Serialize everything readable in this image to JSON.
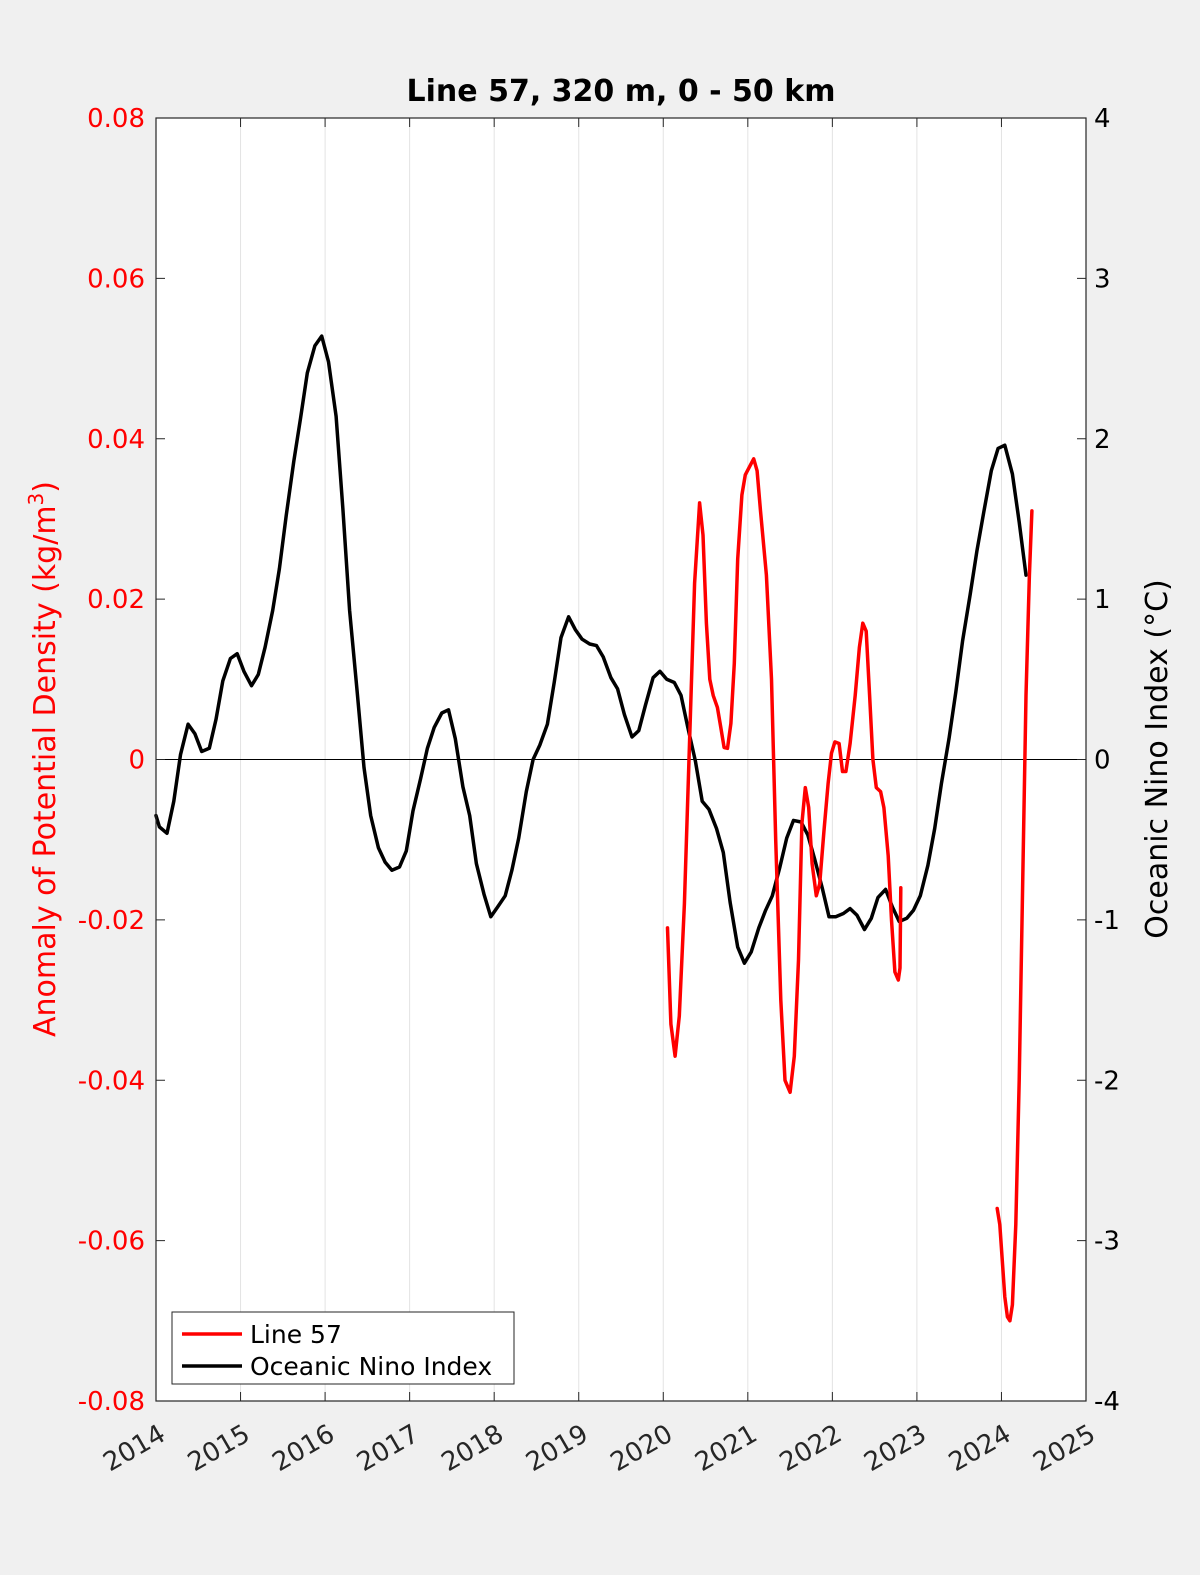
{
  "chart_data": {
    "type": "line",
    "title": "Line 57, 320 m, 0 - 50 km",
    "ylabel_left": "Anomaly of Potential Density (kg/m",
    "ylabel_left_superscript": "3",
    "ylabel_left_close": ")",
    "ylabel_right": "Oceanic Nino Index (°C)",
    "xlim": [
      2014,
      2025
    ],
    "ylim_left": [
      -0.08,
      0.08
    ],
    "ylim_right": [
      -4,
      4
    ],
    "x_ticks": [
      "2014",
      "2015",
      "2016",
      "2017",
      "2018",
      "2019",
      "2020",
      "2021",
      "2022",
      "2023",
      "2024",
      "2025"
    ],
    "y_left_ticks": [
      "0.08",
      "0.06",
      "0.04",
      "0.02",
      "0",
      "-0.02",
      "-0.04",
      "-0.06",
      "-0.08"
    ],
    "y_right_ticks": [
      "4",
      "3",
      "2",
      "1",
      "0",
      "-1",
      "-2",
      "-3",
      "-4"
    ],
    "grid": "vertical",
    "zero_line": true,
    "legend_position": "bottom-left",
    "colors": {
      "line57": "#ff0000",
      "oni": "#000000",
      "left_axis": "#ff0000",
      "right_axis": "#000000"
    },
    "series": [
      {
        "name": "Line 57",
        "axis": "left",
        "color": "#ff0000",
        "segments": [
          [
            [
              2020.05,
              -0.021
            ],
            [
              2020.09,
              -0.033
            ],
            [
              2020.14,
              -0.037
            ],
            [
              2020.19,
              -0.032
            ],
            [
              2020.25,
              -0.018
            ],
            [
              2020.31,
              0.002
            ],
            [
              2020.37,
              0.022
            ],
            [
              2020.43,
              0.032
            ],
            [
              2020.47,
              0.028
            ],
            [
              2020.51,
              0.017
            ],
            [
              2020.55,
              0.01
            ],
            [
              2020.59,
              0.008
            ],
            [
              2020.64,
              0.0065
            ],
            [
              2020.68,
              0.004
            ],
            [
              2020.72,
              0.0015
            ],
            [
              2020.76,
              0.0014
            ],
            [
              2020.8,
              0.0045
            ],
            [
              2020.84,
              0.012
            ],
            [
              2020.88,
              0.025
            ],
            [
              2020.93,
              0.033
            ],
            [
              2020.97,
              0.0355
            ],
            [
              2021.02,
              0.0365
            ],
            [
              2021.07,
              0.0375
            ],
            [
              2021.11,
              0.036
            ],
            [
              2021.15,
              0.031
            ],
            [
              2021.22,
              0.023
            ],
            [
              2021.28,
              0.01
            ],
            [
              2021.33,
              -0.01
            ],
            [
              2021.39,
              -0.03
            ],
            [
              2021.44,
              -0.04
            ],
            [
              2021.5,
              -0.0415
            ],
            [
              2021.55,
              -0.037
            ],
            [
              2021.6,
              -0.025
            ],
            [
              2021.64,
              -0.008
            ],
            [
              2021.68,
              -0.0035
            ],
            [
              2021.72,
              -0.006
            ],
            [
              2021.76,
              -0.013
            ],
            [
              2021.81,
              -0.017
            ],
            [
              2021.85,
              -0.0155
            ],
            [
              2021.9,
              -0.009
            ],
            [
              2021.95,
              -0.003
            ],
            [
              2021.99,
              0.0008
            ],
            [
              2022.03,
              0.0022
            ],
            [
              2022.08,
              0.002
            ],
            [
              2022.12,
              -0.0015
            ],
            [
              2022.16,
              -0.0015
            ],
            [
              2022.21,
              0.002
            ],
            [
              2022.27,
              0.008
            ],
            [
              2022.32,
              0.014
            ],
            [
              2022.36,
              0.017
            ],
            [
              2022.4,
              0.016
            ],
            [
              2022.44,
              0.008
            ],
            [
              2022.48,
              0.0
            ],
            [
              2022.52,
              -0.0035
            ],
            [
              2022.57,
              -0.004
            ],
            [
              2022.61,
              -0.006
            ],
            [
              2022.66,
              -0.012
            ],
            [
              2022.7,
              -0.02
            ],
            [
              2022.74,
              -0.0265
            ],
            [
              2022.78,
              -0.0275
            ],
            [
              2022.8,
              -0.026
            ],
            [
              2022.81,
              -0.016
            ]
          ],
          [
            [
              2023.95,
              -0.056
            ],
            [
              2023.98,
              -0.058
            ],
            [
              2024.01,
              -0.0625
            ],
            [
              2024.04,
              -0.067
            ],
            [
              2024.07,
              -0.0695
            ],
            [
              2024.1,
              -0.07
            ],
            [
              2024.13,
              -0.068
            ],
            [
              2024.17,
              -0.058
            ],
            [
              2024.21,
              -0.04
            ],
            [
              2024.25,
              -0.016
            ],
            [
              2024.29,
              0.008
            ],
            [
              2024.33,
              0.023
            ],
            [
              2024.36,
              0.031
            ]
          ]
        ]
      },
      {
        "name": "Oceanic Nino Index",
        "axis": "right",
        "color": "#000000",
        "x": [
          2014.0,
          2014.04,
          2014.13,
          2014.21,
          2014.29,
          2014.38,
          2014.46,
          2014.54,
          2014.63,
          2014.71,
          2014.79,
          2014.88,
          2014.96,
          2015.04,
          2015.13,
          2015.21,
          2015.29,
          2015.38,
          2015.46,
          2015.54,
          2015.63,
          2015.71,
          2015.79,
          2015.88,
          2015.96,
          2016.04,
          2016.13,
          2016.21,
          2016.29,
          2016.38,
          2016.46,
          2016.54,
          2016.63,
          2016.71,
          2016.79,
          2016.88,
          2016.96,
          2017.04,
          2017.13,
          2017.21,
          2017.29,
          2017.38,
          2017.46,
          2017.54,
          2017.63,
          2017.71,
          2017.79,
          2017.88,
          2017.96,
          2018.04,
          2018.13,
          2018.21,
          2018.29,
          2018.38,
          2018.46,
          2018.54,
          2018.63,
          2018.71,
          2018.79,
          2018.88,
          2018.96,
          2019.04,
          2019.13,
          2019.21,
          2019.29,
          2019.38,
          2019.46,
          2019.54,
          2019.63,
          2019.71,
          2019.79,
          2019.88,
          2019.96,
          2020.04,
          2020.13,
          2020.21,
          2020.29,
          2020.38,
          2020.46,
          2020.54,
          2020.63,
          2020.71,
          2020.79,
          2020.88,
          2020.96,
          2021.04,
          2021.13,
          2021.21,
          2021.29,
          2021.38,
          2021.46,
          2021.54,
          2021.63,
          2021.71,
          2021.79,
          2021.88,
          2021.96,
          2022.04,
          2022.13,
          2022.21,
          2022.29,
          2022.38,
          2022.46,
          2022.54,
          2022.63,
          2022.71,
          2022.79,
          2022.88,
          2022.96,
          2023.04,
          2023.13,
          2023.21,
          2023.29,
          2023.38,
          2023.46,
          2023.54,
          2023.63,
          2023.71,
          2023.79,
          2023.88,
          2023.96,
          2024.04,
          2024.13,
          2024.21,
          2024.29
        ],
        "values": [
          -0.35,
          -0.42,
          -0.46,
          -0.26,
          0.03,
          0.22,
          0.16,
          0.05,
          0.07,
          0.25,
          0.49,
          0.63,
          0.66,
          0.55,
          0.46,
          0.53,
          0.7,
          0.93,
          1.19,
          1.52,
          1.86,
          2.13,
          2.41,
          2.58,
          2.64,
          2.48,
          2.14,
          1.57,
          0.93,
          0.42,
          -0.05,
          -0.35,
          -0.55,
          -0.64,
          -0.69,
          -0.67,
          -0.57,
          -0.32,
          -0.12,
          0.07,
          0.2,
          0.29,
          0.31,
          0.13,
          -0.17,
          -0.35,
          -0.65,
          -0.84,
          -0.98,
          -0.92,
          -0.85,
          -0.69,
          -0.49,
          -0.2,
          0.0,
          0.09,
          0.22,
          0.48,
          0.76,
          0.89,
          0.81,
          0.75,
          0.72,
          0.71,
          0.64,
          0.51,
          0.44,
          0.28,
          0.14,
          0.18,
          0.34,
          0.51,
          0.55,
          0.5,
          0.48,
          0.4,
          0.2,
          -0.01,
          -0.26,
          -0.31,
          -0.43,
          -0.58,
          -0.89,
          -1.17,
          -1.27,
          -1.2,
          -1.05,
          -0.94,
          -0.85,
          -0.67,
          -0.49,
          -0.38,
          -0.39,
          -0.47,
          -0.62,
          -0.8,
          -0.98,
          -0.98,
          -0.96,
          -0.93,
          -0.97,
          -1.06,
          -0.99,
          -0.86,
          -0.81,
          -0.92,
          -1.01,
          -0.99,
          -0.94,
          -0.85,
          -0.66,
          -0.43,
          -0.15,
          0.13,
          0.42,
          0.74,
          1.03,
          1.3,
          1.54,
          1.8,
          1.94,
          1.96,
          1.78,
          1.48,
          1.15
        ]
      }
    ]
  },
  "legend": {
    "items": [
      {
        "label": "Line 57",
        "color": "#ff0000"
      },
      {
        "label": "Oceanic Nino Index",
        "color": "#000000"
      }
    ]
  }
}
